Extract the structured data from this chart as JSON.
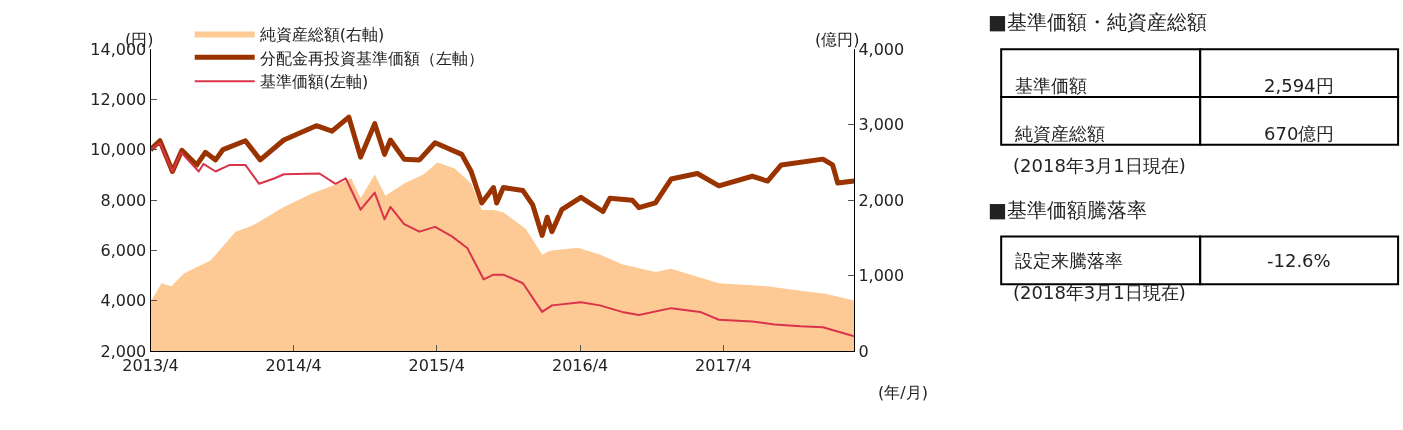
{
  "chart_data": [
    {
      "type": "line",
      "xlabel": "(年/月)",
      "ylabel": "(円)",
      "y2label": "(億円)",
      "legend": "top left",
      "xlim": [
        "2013-04-01",
        "2018-03-01"
      ],
      "xticks": [
        {
          "value": "2013-04",
          "label": "2013/4"
        },
        {
          "value": "2014-04",
          "label": "2014/4"
        },
        {
          "value": "2015-04",
          "label": "2015/4"
        },
        {
          "value": "2016-04",
          "label": "2016/4"
        },
        {
          "value": "2017-04",
          "label": "2017/4"
        }
      ],
      "ylim": [
        2000,
        14000
      ],
      "yticks": [
        {
          "value": 2000,
          "label": "2,000"
        },
        {
          "value": 4000,
          "label": "4,000"
        },
        {
          "value": 6000,
          "label": "6,000"
        },
        {
          "value": 8000,
          "label": "8,000"
        },
        {
          "value": 10000,
          "label": "10,000"
        },
        {
          "value": 12000,
          "label": "12,000"
        },
        {
          "value": 14000,
          "label": "14,000"
        }
      ],
      "y2lim": [
        0,
        4000
      ],
      "y2ticks": [
        0,
        {
          "value": 1000,
          "label": "1,000"
        },
        {
          "value": 2000,
          "label": "2,000"
        },
        {
          "value": 3000,
          "label": "3,000"
        },
        {
          "value": 4000,
          "label": "4,000"
        }
      ],
      "series": [
        {
          "name": "純資産総額(右軸)",
          "type": "area",
          "axis": "y2",
          "color": "#fdca96",
          "x": [
            "2013-04-01",
            "2013-04-29",
            "2013-05-24",
            "2013-06-25",
            "2013-09-01",
            "2013-11-04",
            "2013-12-16",
            "2014-03-07",
            "2014-05-19",
            "2014-07-25",
            "2014-08-26",
            "2014-09-19",
            "2014-10-25",
            "2014-11-21",
            "2015-01-08",
            "2015-02-26",
            "2015-04-03",
            "2015-05-17",
            "2015-06-28",
            "2015-07-25",
            "2015-08-24",
            "2015-09-18",
            "2015-11-14",
            "2015-12-26",
            "2016-01-15",
            "2016-03-26",
            "2016-05-21",
            "2016-07-17",
            "2016-10-10",
            "2016-11-19",
            "2017-03-21",
            "2017-07-23",
            "2017-10-15",
            "2017-12-18",
            "2018-03-01"
          ],
          "values": [
            650,
            900,
            860,
            1030,
            1200,
            1580,
            1660,
            1910,
            2090,
            2220,
            2290,
            2030,
            2340,
            2060,
            2220,
            2340,
            2500,
            2420,
            2220,
            1870,
            1870,
            1840,
            1620,
            1280,
            1330,
            1370,
            1280,
            1150,
            1050,
            1090,
            900,
            860,
            800,
            760,
            670
          ]
        },
        {
          "name": "分配金再投資基準価額（左軸）",
          "type": "line",
          "color": "#993300",
          "x": [
            "2013-04-01",
            "2013-04-25",
            "2013-05-27",
            "2013-06-20",
            "2013-07-28",
            "2013-08-19",
            "2013-09-14",
            "2013-10-03",
            "2013-11-29",
            "2014-01-06",
            "2014-03-07",
            "2014-05-29",
            "2014-07-08",
            "2014-08-20",
            "2014-09-19",
            "2014-10-25",
            "2014-11-19",
            "2014-12-04",
            "2015-01-08",
            "2015-02-16",
            "2015-03-28",
            "2015-06-04",
            "2015-06-28",
            "2015-07-25",
            "2015-08-24",
            "2015-09-01",
            "2015-09-18",
            "2015-11-07",
            "2015-12-02",
            "2015-12-26",
            "2016-01-08",
            "2016-01-20",
            "2016-02-14",
            "2016-04-03",
            "2016-05-29",
            "2016-06-16",
            "2016-08-12",
            "2016-08-29",
            "2016-10-10",
            "2016-11-19",
            "2017-01-25",
            "2017-03-21",
            "2017-06-14",
            "2017-07-23",
            "2017-08-27",
            "2017-12-11",
            "2018-01-05",
            "2018-01-18",
            "2018-03-01"
          ],
          "values": [
            10000,
            10360,
            9140,
            9980,
            9400,
            9900,
            9600,
            10010,
            10360,
            9600,
            10390,
            10960,
            10740,
            11300,
            9710,
            11040,
            9820,
            10390,
            9630,
            9600,
            10280,
            9820,
            9140,
            7890,
            8500,
            7890,
            8500,
            8380,
            7810,
            6600,
            7320,
            6750,
            7620,
            8110,
            7550,
            8080,
            8000,
            7700,
            7890,
            8840,
            9060,
            8570,
            8950,
            8760,
            9400,
            9630,
            9400,
            8680,
            8760
          ]
        },
        {
          "name": "基準価額(左軸)",
          "type": "line",
          "color": "#d9344a",
          "x": [
            "2013-04-01",
            "2013-04-25",
            "2013-05-27",
            "2013-06-18",
            "2013-08-02",
            "2013-08-14",
            "2013-09-14",
            "2013-10-20",
            "2013-11-29",
            "2014-01-03",
            "2014-02-12",
            "2014-03-07",
            "2014-06-06",
            "2014-07-17",
            "2014-08-12",
            "2014-09-19",
            "2014-10-25",
            "2014-11-19",
            "2014-12-04",
            "2015-01-08",
            "2015-02-16",
            "2015-03-28",
            "2015-05-10",
            "2015-06-18",
            "2015-07-30",
            "2015-08-24",
            "2015-09-18",
            "2015-11-07",
            "2015-12-26",
            "2016-01-20",
            "2016-04-03",
            "2016-05-21",
            "2016-07-17",
            "2016-08-29",
            "2016-11-19",
            "2017-02-01",
            "2017-03-21",
            "2017-06-14",
            "2017-08-10",
            "2017-10-15",
            "2017-12-11",
            "2018-03-01"
          ],
          "values": [
            10000,
            10280,
            9140,
            9900,
            9140,
            9440,
            9140,
            9400,
            9400,
            8650,
            8870,
            9030,
            9060,
            8650,
            8870,
            7620,
            8300,
            7240,
            7730,
            7050,
            6750,
            6940,
            6560,
            6100,
            4850,
            5040,
            5040,
            4700,
            3560,
            3820,
            3940,
            3820,
            3560,
            3440,
            3710,
            3560,
            3250,
            3180,
            3060,
            2990,
            2950,
            2590
          ]
        }
      ]
    },
    {
      "type": "other",
      "title": "■基準価額・純資産総額",
      "categories": [
        "基準価額",
        "純資産総額"
      ],
      "value_labels": [
        "2,594円",
        "670億円"
      ],
      "annotations": [
        "(2018年3月1日現在)"
      ]
    },
    {
      "type": "other",
      "title": "■基準価額騰落率",
      "categories": [
        "設定来騰落率"
      ],
      "value_labels": [
        "-12.6%"
      ],
      "annotations": [
        "(2018年3月1日現在)"
      ]
    }
  ]
}
